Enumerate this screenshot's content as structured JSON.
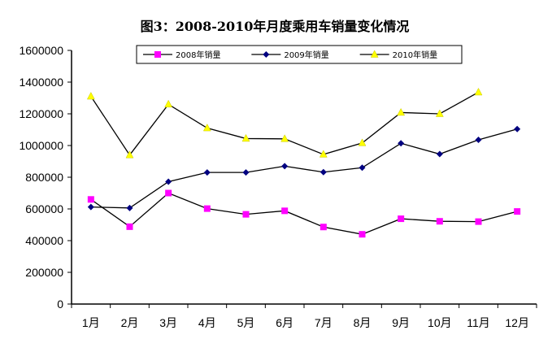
{
  "chart_data": {
    "type": "line",
    "title": "图3：2008-2010年月度乘用车销量变化情况",
    "categories": [
      "1月",
      "2月",
      "3月",
      "4月",
      "5月",
      "6月",
      "7月",
      "8月",
      "9月",
      "10月",
      "11月",
      "12月"
    ],
    "ylim": [
      0,
      1600000
    ],
    "yticks": [
      0,
      200000,
      400000,
      600000,
      800000,
      1000000,
      1200000,
      1400000,
      1600000
    ],
    "grid": false,
    "legend_position": "top-right",
    "series": [
      {
        "name": "2008年销量",
        "color": "#ff00ff",
        "marker": "square",
        "values": [
          660000,
          488000,
          700000,
          602000,
          566000,
          588000,
          486000,
          440000,
          538000,
          522000,
          520000,
          584000
        ]
      },
      {
        "name": "2009年销量",
        "color": "#000080",
        "marker": "diamond",
        "values": [
          612000,
          606000,
          772000,
          830000,
          830000,
          870000,
          832000,
          860000,
          1014000,
          946000,
          1036000,
          1104000
        ]
      },
      {
        "name": "2010年销量",
        "color": "#ffff00",
        "marker": "triangle",
        "values": [
          1310000,
          940000,
          1260000,
          1110000,
          1044000,
          1042000,
          944000,
          1016000,
          1208000,
          1200000,
          1336000,
          null
        ]
      }
    ]
  }
}
